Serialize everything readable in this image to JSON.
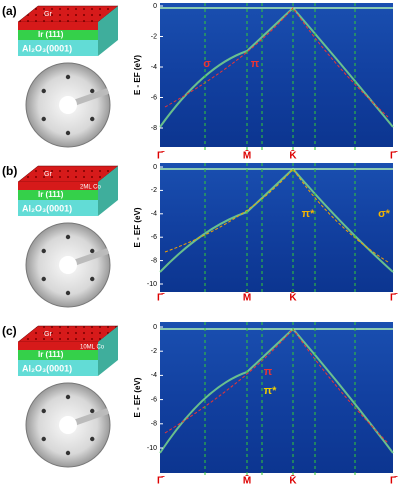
{
  "panels": [
    {
      "label": "(a)",
      "layers": {
        "top": "Gr",
        "middle": "Ir (111)",
        "bottom": "Al₂O₃(0001)"
      },
      "y_label": "E - EF (eV)",
      "yticks": [
        "0",
        "-2",
        "-4",
        "-6",
        "-8"
      ],
      "x_labels": [
        "Γ̄",
        "M̄",
        "K̄",
        "Γ̄"
      ],
      "annotations": [
        "σ",
        "π"
      ]
    },
    {
      "label": "(b)",
      "layers": {
        "top": "Gr",
        "cobalt": "2ML Co",
        "middle": "Ir (111)",
        "bottom": "Al₂O₃(0001)"
      },
      "y_label": "E - EF (eV)",
      "yticks": [
        "0",
        "-2",
        "-4",
        "-6",
        "-8",
        "-10"
      ],
      "x_labels": [
        "Γ̄",
        "M̄",
        "K̄",
        "Γ̄"
      ],
      "annotations": [
        "π*",
        "σ*"
      ]
    },
    {
      "label": "(c)",
      "layers": {
        "top": "Gr",
        "cobalt": "10ML Co",
        "middle": "Ir (111)",
        "bottom": "Al₂O₃(0001)"
      },
      "y_label": "E - EF (eV)",
      "yticks": [
        "0",
        "-2",
        "-4",
        "-6",
        "-8",
        "-10"
      ],
      "x_labels": [
        "Γ̄",
        "M̄",
        "K̄",
        "Γ̄"
      ],
      "annotations": [
        "π",
        "π*"
      ]
    }
  ]
}
